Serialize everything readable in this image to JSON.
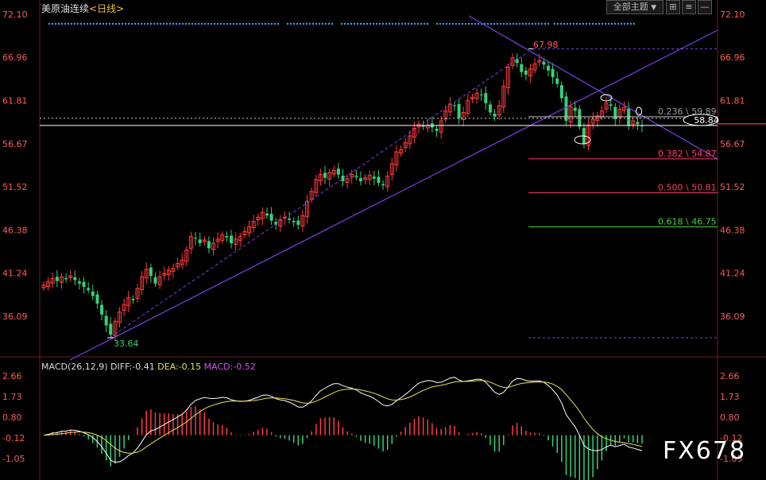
{
  "header": {
    "title": "美原油连续",
    "period_open": "<",
    "period": "日线",
    "period_close": ">"
  },
  "toolbar": {
    "theme_label": "全部主题",
    "theme_caret": "▼",
    "btn_plus": "⊞",
    "btn_menu": "≡",
    "btn_min": "—",
    "btn_close": "✕"
  },
  "watermark": "FX678",
  "colors": {
    "up": "#ff3b3b",
    "down": "#34d17a",
    "trend": "#7b3fe4",
    "fib_236": "#c0c0c0",
    "fib_382": "#ff3b6b",
    "fib_500": "#ff3b6b",
    "fib_618": "#3fd33f",
    "diff": "#ffffff",
    "dea": "#e6e35a",
    "macd": "#d152e0"
  },
  "chart_data": [
    {
      "type": "candlestick",
      "title": "美原油连续<日线>",
      "yticks": [
        "72.10",
        "66.96",
        "61.81",
        "56.67",
        "51.52",
        "46.38",
        "41.24",
        "36.09"
      ],
      "ylim": [
        31.0,
        73.0
      ],
      "current_price": "58.84",
      "high_label": "67.98",
      "low_label": "33.64",
      "fib_levels": [
        {
          "ratio": "0.236",
          "value": "59.89",
          "label": "0.236 \\ 59.89"
        },
        {
          "ratio": "0.382",
          "value": "54.87",
          "label": "0.382 \\ 54.87"
        },
        {
          "ratio": "0.500",
          "value": "50.81",
          "label": "0.500 \\ 50.81"
        },
        {
          "ratio": "0.618",
          "value": "46.75",
          "label": "0.618 \\ 46.75"
        }
      ],
      "closes": [
        39.8,
        40.2,
        40.6,
        40.3,
        40.8,
        40.5,
        40.9,
        40.4,
        40.0,
        39.6,
        39.2,
        38.5,
        37.6,
        36.3,
        35.0,
        33.9,
        35.5,
        36.6,
        37.5,
        38.3,
        38.0,
        39.4,
        40.8,
        41.7,
        40.9,
        40.0,
        40.8,
        41.2,
        41.6,
        41.8,
        42.4,
        42.8,
        44.0,
        45.6,
        45.4,
        44.8,
        45.2,
        44.2,
        44.8,
        45.3,
        45.8,
        45.5,
        44.8,
        45.3,
        45.6,
        46.2,
        46.8,
        47.4,
        47.9,
        48.5,
        48.1,
        47.5,
        47.0,
        47.6,
        47.9,
        47.6,
        47.3,
        47.0,
        48.1,
        49.8,
        51.0,
        52.4,
        53.0,
        52.6,
        53.2,
        53.5,
        53.0,
        52.2,
        52.5,
        53.0,
        52.7,
        52.2,
        52.6,
        52.9,
        52.5,
        52.0,
        51.7,
        52.8,
        54.3,
        55.7,
        56.0,
        56.8,
        57.6,
        58.5,
        59.0,
        58.7,
        58.9,
        58.6,
        58.2,
        59.4,
        60.6,
        61.4,
        61.2,
        59.7,
        60.4,
        61.8,
        62.2,
        62.7,
        62.5,
        61.5,
        60.4,
        59.9,
        61.2,
        63.5,
        65.8,
        66.9,
        66.3,
        65.2,
        64.9,
        65.6,
        66.2,
        66.6,
        66.1,
        65.4,
        64.6,
        63.8,
        62.1,
        59.4,
        61.1,
        60.6,
        58.7,
        56.6,
        58.9,
        59.6,
        60.0,
        60.6,
        61.5,
        61.2,
        59.6,
        60.8,
        61.0,
        58.8,
        59.4,
        59.0,
        58.84
      ]
    },
    {
      "type": "macd",
      "label": "MACD(26,12,9)",
      "diff": "DIFF:-0.41",
      "dea": "DEA:-0.15",
      "macd": "MACD:-0.52",
      "yticks": [
        "2.66",
        "1.73",
        "0.80",
        "-0.12",
        "-1.05"
      ],
      "ylim": [
        -1.6,
        2.9
      ]
    }
  ]
}
